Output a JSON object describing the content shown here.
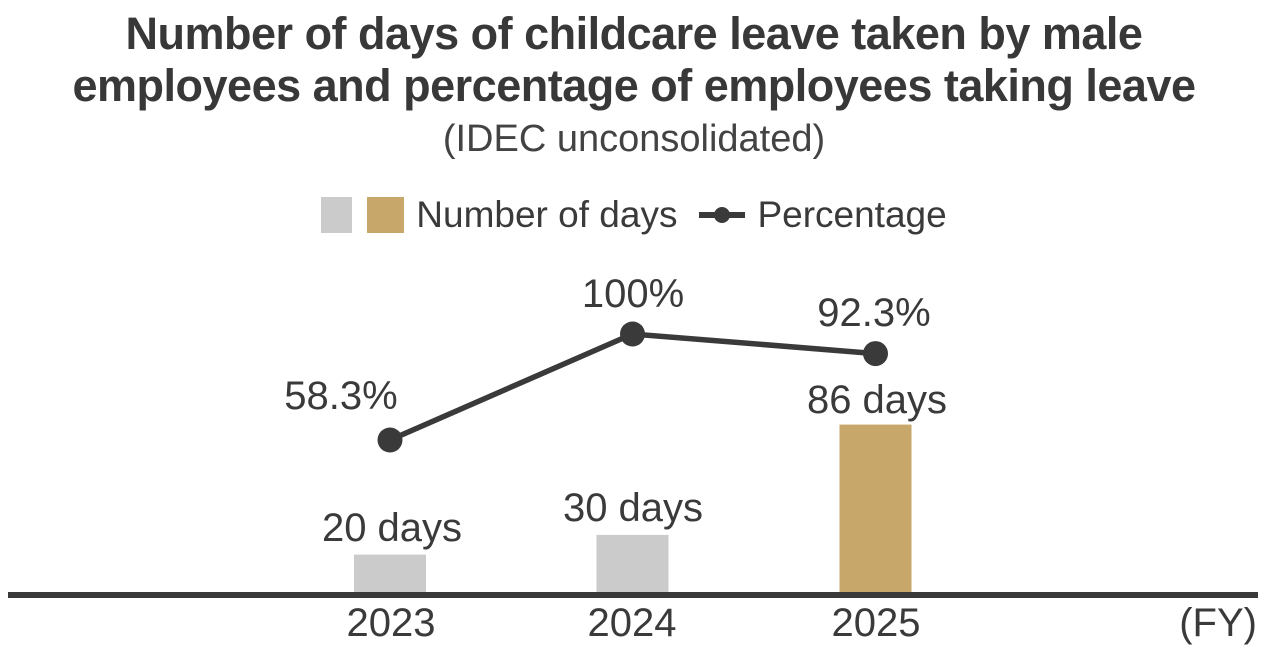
{
  "title": {
    "line1": "Number of days of childcare leave taken by male",
    "line2": "employees and percentage of employees taking leave",
    "subtitle": "(IDEC unconsolidated)"
  },
  "legend": {
    "days": "Number of days",
    "percentage": "Percentage"
  },
  "axis": {
    "fy_label": "(FY)"
  },
  "colors": {
    "gray": "#cbcbcb",
    "gold": "#c7a76a",
    "dark": "#3a3a3a"
  },
  "chart_data": {
    "type": "bar+line",
    "title": "Number of days of childcare leave taken by male employees and percentage of employees taking leave (IDEC unconsolidated)",
    "categories": [
      "2023",
      "2024",
      "2025"
    ],
    "series": [
      {
        "name": "Number of days",
        "type": "bar",
        "unit": "days",
        "values": [
          20,
          30,
          86
        ],
        "labels": [
          "20 days",
          "30 days",
          "86 days"
        ],
        "bar_colors": [
          "#cbcbcb",
          "#cbcbcb",
          "#c7a76a"
        ]
      },
      {
        "name": "Percentage",
        "type": "line",
        "unit": "%",
        "values": [
          58.3,
          100,
          92.3
        ],
        "labels": [
          "58.3%",
          "100%",
          "92.3%"
        ],
        "color": "#3a3a3a"
      }
    ],
    "xlabel": "(FY)",
    "legend_position": "top",
    "grid": false,
    "y_axis_visible": false,
    "data_labels_shown": true
  }
}
